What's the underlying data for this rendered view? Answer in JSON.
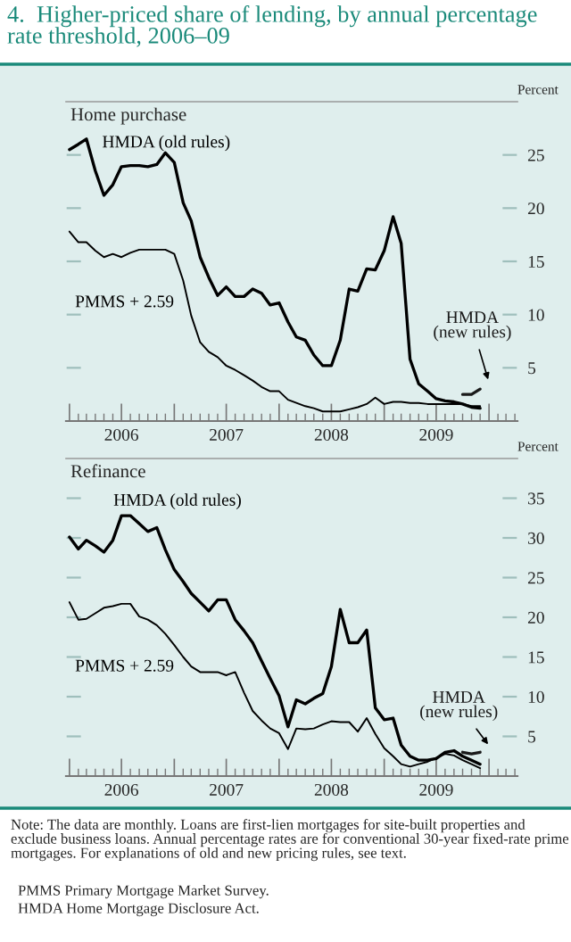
{
  "chart_data": [
    {
      "type": "line",
      "title": "4.  Higher-priced share of lending, by annual percentage rate threshold, 2006–09",
      "subtitle": "Home purchase",
      "ylabel": "Percent",
      "xlim": [
        "2005-12-20",
        "2010-04-10"
      ],
      "ylim": [
        0,
        30
      ],
      "yticks": [
        5,
        10,
        15,
        20,
        25
      ],
      "xticks": [
        {
          "value": "2006-01-01",
          "label": null
        },
        {
          "value": "2006-07-01",
          "label": "2006"
        },
        {
          "value": "2007-01-01",
          "label": null
        },
        {
          "value": "2007-07-01",
          "label": "2007"
        },
        {
          "value": "2008-01-01",
          "label": null
        },
        {
          "value": "2008-07-01",
          "label": "2008"
        },
        {
          "value": "2009-01-01",
          "label": null
        },
        {
          "value": "2009-07-01",
          "label": "2009"
        },
        {
          "value": "2010-01-01",
          "label": null
        }
      ],
      "series": [
        {
          "name": "HMDA (old rules)",
          "color": "#000000",
          "x": [
            "2006-01",
            "2006-02",
            "2006-03",
            "2006-04",
            "2006-05",
            "2006-06",
            "2006-07",
            "2006-08",
            "2006-09",
            "2006-10",
            "2006-11",
            "2006-12",
            "2007-01",
            "2007-02",
            "2007-03",
            "2007-04",
            "2007-05",
            "2007-06",
            "2007-07",
            "2007-08",
            "2007-09",
            "2007-10",
            "2007-11",
            "2007-12",
            "2008-01",
            "2008-02",
            "2008-03",
            "2008-04",
            "2008-05",
            "2008-06",
            "2008-07",
            "2008-08",
            "2008-09",
            "2008-10",
            "2008-11",
            "2008-12",
            "2009-01",
            "2009-02",
            "2009-03",
            "2009-04",
            "2009-05",
            "2009-06",
            "2009-07",
            "2009-08",
            "2009-09",
            "2009-10",
            "2009-11",
            "2009-12"
          ],
          "values": [
            25.5,
            26.0,
            26.5,
            23.5,
            21.2,
            22.2,
            23.9,
            24.0,
            24.0,
            23.9,
            24.1,
            25.2,
            24.3,
            20.5,
            18.8,
            15.4,
            13.5,
            11.8,
            12.6,
            11.7,
            11.7,
            12.4,
            12.0,
            10.9,
            11.1,
            9.3,
            7.9,
            7.6,
            6.2,
            5.2,
            5.2,
            7.6,
            12.4,
            12.2,
            14.3,
            14.2,
            16.0,
            19.2,
            16.7,
            5.8,
            3.5,
            2.8,
            2.1,
            1.9,
            1.8,
            1.6,
            1.3,
            1.2
          ]
        },
        {
          "name": "PMMS + 2.59",
          "color": "#000000",
          "x": [
            "2006-01",
            "2006-02",
            "2006-03",
            "2006-04",
            "2006-05",
            "2006-06",
            "2006-07",
            "2006-08",
            "2006-09",
            "2006-10",
            "2006-11",
            "2006-12",
            "2007-01",
            "2007-02",
            "2007-03",
            "2007-04",
            "2007-05",
            "2007-06",
            "2007-07",
            "2007-08",
            "2007-09",
            "2007-10",
            "2007-11",
            "2007-12",
            "2008-01",
            "2008-02",
            "2008-03",
            "2008-04",
            "2008-05",
            "2008-06",
            "2008-07",
            "2008-08",
            "2008-09",
            "2008-10",
            "2008-11",
            "2008-12",
            "2009-01",
            "2009-02",
            "2009-03",
            "2009-04",
            "2009-05",
            "2009-06",
            "2009-07",
            "2009-08",
            "2009-09",
            "2009-10",
            "2009-11",
            "2009-12"
          ],
          "values": [
            17.8,
            16.8,
            16.8,
            16.0,
            15.4,
            15.7,
            15.4,
            15.8,
            16.1,
            16.1,
            16.1,
            16.1,
            15.7,
            13.2,
            9.9,
            7.4,
            6.5,
            6.0,
            5.2,
            4.8,
            4.3,
            3.8,
            3.2,
            2.8,
            2.8,
            2.0,
            1.7,
            1.4,
            1.2,
            0.9,
            0.9,
            0.9,
            1.1,
            1.3,
            1.6,
            2.2,
            1.6,
            1.8,
            1.8,
            1.7,
            1.7,
            1.6,
            1.6,
            1.6,
            1.6,
            1.6,
            1.4,
            1.4
          ]
        },
        {
          "name": "HMDA (new rules)",
          "color": "#1a1a1a",
          "x": [
            "2009-10",
            "2009-11",
            "2009-12"
          ],
          "values": [
            2.5,
            2.5,
            3.0
          ]
        }
      ]
    },
    {
      "type": "line",
      "subtitle": "Refinance",
      "ylabel": "Percent",
      "xlim": [
        "2005-12-20",
        "2010-04-10"
      ],
      "ylim": [
        0,
        40
      ],
      "yticks": [
        5,
        10,
        15,
        20,
        25,
        30,
        35
      ],
      "xticks": [
        {
          "value": "2006-01-01",
          "label": null
        },
        {
          "value": "2006-07-01",
          "label": "2006"
        },
        {
          "value": "2007-01-01",
          "label": null
        },
        {
          "value": "2007-07-01",
          "label": "2007"
        },
        {
          "value": "2008-01-01",
          "label": null
        },
        {
          "value": "2008-07-01",
          "label": "2008"
        },
        {
          "value": "2009-01-01",
          "label": null
        },
        {
          "value": "2009-07-01",
          "label": "2009"
        },
        {
          "value": "2010-01-01",
          "label": null
        }
      ],
      "series": [
        {
          "name": "HMDA (old rules)",
          "color": "#000000",
          "x": [
            "2006-01",
            "2006-02",
            "2006-03",
            "2006-04",
            "2006-05",
            "2006-06",
            "2006-07",
            "2006-08",
            "2006-09",
            "2006-10",
            "2006-11",
            "2006-12",
            "2007-01",
            "2007-02",
            "2007-03",
            "2007-04",
            "2007-05",
            "2007-06",
            "2007-07",
            "2007-08",
            "2007-09",
            "2007-10",
            "2007-11",
            "2007-12",
            "2008-01",
            "2008-02",
            "2008-03",
            "2008-04",
            "2008-05",
            "2008-06",
            "2008-07",
            "2008-08",
            "2008-09",
            "2008-10",
            "2008-11",
            "2008-12",
            "2009-01",
            "2009-02",
            "2009-03",
            "2009-04",
            "2009-05",
            "2009-06",
            "2009-07",
            "2009-08",
            "2009-09",
            "2009-10",
            "2009-11",
            "2009-12"
          ],
          "values": [
            30.1,
            28.6,
            29.7,
            29.0,
            28.2,
            29.7,
            32.8,
            32.8,
            31.8,
            30.8,
            31.3,
            28.5,
            26.0,
            24.5,
            23.0,
            21.9,
            20.8,
            22.2,
            22.2,
            19.7,
            18.3,
            16.8,
            14.5,
            12.3,
            10.1,
            6.2,
            9.6,
            9.1,
            9.8,
            10.4,
            13.8,
            21.0,
            16.8,
            16.8,
            18.4,
            8.6,
            7.1,
            7.3,
            3.9,
            2.5,
            2.0,
            2.0,
            2.2,
            3.0,
            3.2,
            2.5,
            2.0,
            1.5
          ]
        },
        {
          "name": "PMMS + 2.59",
          "color": "#000000",
          "x": [
            "2006-01",
            "2006-02",
            "2006-03",
            "2006-04",
            "2006-05",
            "2006-06",
            "2006-07",
            "2006-08",
            "2006-09",
            "2006-10",
            "2006-11",
            "2006-12",
            "2007-01",
            "2007-02",
            "2007-03",
            "2007-04",
            "2007-05",
            "2007-06",
            "2007-07",
            "2007-08",
            "2007-09",
            "2007-10",
            "2007-11",
            "2007-12",
            "2008-01",
            "2008-02",
            "2008-03",
            "2008-04",
            "2008-05",
            "2008-06",
            "2008-07",
            "2008-08",
            "2008-09",
            "2008-10",
            "2008-11",
            "2008-12",
            "2009-01",
            "2009-02",
            "2009-03",
            "2009-04",
            "2009-05",
            "2009-06",
            "2009-07",
            "2009-08",
            "2009-09",
            "2009-10",
            "2009-11",
            "2009-12"
          ],
          "values": [
            21.9,
            19.7,
            19.8,
            20.5,
            21.2,
            21.4,
            21.7,
            21.7,
            20.1,
            19.7,
            19.0,
            17.9,
            16.5,
            15.0,
            13.8,
            13.1,
            13.1,
            13.1,
            12.7,
            13.1,
            10.5,
            8.2,
            7.0,
            6.0,
            5.4,
            3.4,
            6.0,
            5.9,
            6.0,
            6.5,
            6.9,
            6.8,
            6.8,
            5.6,
            7.3,
            5.3,
            3.5,
            2.5,
            1.5,
            1.2,
            1.5,
            1.8,
            2.3,
            2.8,
            2.6,
            2.0,
            1.5,
            1.0
          ]
        },
        {
          "name": "HMDA (new rules)",
          "color": "#1a1a1a",
          "x": [
            "2009-10",
            "2009-11",
            "2009-12"
          ],
          "values": [
            3.0,
            2.8,
            3.0
          ]
        }
      ],
      "annotations": [
        "Note: The data are monthly. Loans are first-lien mortgages for site-built properties and exclude business loans. Annual percentage rates are for conventional 30-year fixed-rate prime mortgages. For explanations of old and new pricing rules, see text.",
        "PMMS Primary Mortgage Market Survey.",
        "HMDA Home Mortgage Disclosure Act."
      ]
    }
  ]
}
